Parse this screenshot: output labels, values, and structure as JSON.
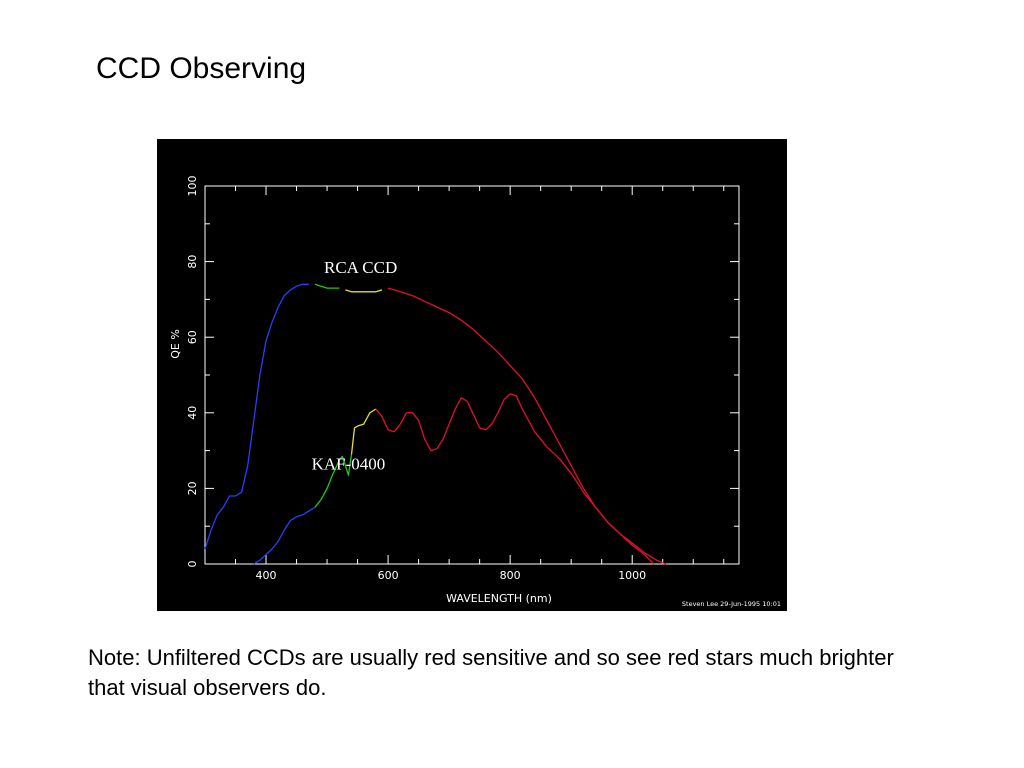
{
  "slide": {
    "title": "CCD Observing",
    "note": "Note:  Unfiltered CCDs are usually red sensitive and so see red stars much brighter that visual observers do."
  },
  "chart_data": {
    "type": "line",
    "xlabel": "WAVELENGTH (nm)",
    "ylabel": "QE %",
    "xlim": [
      300,
      1175
    ],
    "ylim": [
      0,
      100
    ],
    "x_ticks": [
      400,
      600,
      800,
      1000
    ],
    "y_ticks": [
      0,
      20,
      40,
      60,
      80,
      100
    ],
    "grid": false,
    "background": "#000000",
    "credit": "Steven Lee 29-Jun-1995 10:01",
    "annotations": [
      {
        "text": "RCA CCD",
        "x": 555,
        "y": 77
      },
      {
        "text": "KAF-0400",
        "x": 535,
        "y": 25
      }
    ],
    "series": [
      {
        "name": "RCA CCD",
        "points": [
          [
            300,
            4
          ],
          [
            310,
            9
          ],
          [
            320,
            13
          ],
          [
            330,
            15
          ],
          [
            340,
            18
          ],
          [
            350,
            18
          ],
          [
            360,
            19
          ],
          [
            370,
            26
          ],
          [
            380,
            38
          ],
          [
            390,
            50
          ],
          [
            400,
            59
          ],
          [
            410,
            64
          ],
          [
            420,
            68
          ],
          [
            430,
            71
          ],
          [
            440,
            72.5
          ],
          [
            450,
            73.5
          ],
          [
            460,
            74
          ],
          [
            470,
            74
          ],
          [
            480,
            74
          ],
          [
            490,
            73.5
          ],
          [
            500,
            73
          ],
          [
            510,
            73
          ],
          [
            520,
            73
          ],
          [
            530,
            72.5
          ],
          [
            540,
            72
          ],
          [
            550,
            72
          ],
          [
            560,
            72
          ],
          [
            570,
            72
          ],
          [
            580,
            72
          ],
          [
            590,
            72.5
          ],
          [
            600,
            73
          ],
          [
            610,
            72.5
          ],
          [
            620,
            72
          ],
          [
            640,
            71
          ],
          [
            660,
            69.5
          ],
          [
            680,
            68
          ],
          [
            700,
            66.5
          ],
          [
            720,
            64.5
          ],
          [
            740,
            62
          ],
          [
            760,
            59
          ],
          [
            780,
            56
          ],
          [
            800,
            52.5
          ],
          [
            820,
            49
          ],
          [
            840,
            44
          ],
          [
            860,
            38
          ],
          [
            880,
            32
          ],
          [
            900,
            26
          ],
          [
            920,
            20
          ],
          [
            940,
            15
          ],
          [
            960,
            11
          ],
          [
            980,
            8
          ],
          [
            1000,
            5.5
          ],
          [
            1020,
            3
          ],
          [
            1040,
            1
          ],
          [
            1055,
            0
          ]
        ],
        "color_segments": [
          {
            "from": 300,
            "to": 478,
            "color": "#2a3ff5"
          },
          {
            "from": 478,
            "to": 525,
            "color": "#22c51f"
          },
          {
            "from": 525,
            "to": 595,
            "color": "#e8e020"
          },
          {
            "from": 595,
            "to": 1055,
            "color": "#e0102a"
          }
        ]
      },
      {
        "name": "KAF-0400",
        "points": [
          [
            380,
            0
          ],
          [
            390,
            1
          ],
          [
            400,
            2.5
          ],
          [
            410,
            4
          ],
          [
            420,
            6
          ],
          [
            430,
            9
          ],
          [
            440,
            11.5
          ],
          [
            450,
            12.5
          ],
          [
            460,
            13
          ],
          [
            470,
            14
          ],
          [
            480,
            15
          ],
          [
            490,
            17
          ],
          [
            500,
            20
          ],
          [
            510,
            24
          ],
          [
            520,
            27.5
          ],
          [
            525,
            28.5
          ],
          [
            530,
            26
          ],
          [
            535,
            23.5
          ],
          [
            540,
            29
          ],
          [
            545,
            36
          ],
          [
            550,
            36.5
          ],
          [
            560,
            37
          ],
          [
            570,
            40
          ],
          [
            580,
            41
          ],
          [
            590,
            39
          ],
          [
            600,
            35.5
          ],
          [
            610,
            35
          ],
          [
            620,
            37
          ],
          [
            630,
            40
          ],
          [
            640,
            40
          ],
          [
            650,
            38
          ],
          [
            660,
            33
          ],
          [
            670,
            30
          ],
          [
            680,
            30.5
          ],
          [
            690,
            33
          ],
          [
            700,
            37
          ],
          [
            710,
            41
          ],
          [
            720,
            44
          ],
          [
            730,
            43
          ],
          [
            740,
            39.5
          ],
          [
            750,
            36
          ],
          [
            760,
            35.5
          ],
          [
            770,
            37
          ],
          [
            780,
            40
          ],
          [
            790,
            43.5
          ],
          [
            800,
            45
          ],
          [
            810,
            44.5
          ],
          [
            820,
            41
          ],
          [
            840,
            35
          ],
          [
            860,
            31
          ],
          [
            880,
            28
          ],
          [
            900,
            24
          ],
          [
            920,
            19
          ],
          [
            940,
            15
          ],
          [
            960,
            11
          ],
          [
            980,
            8
          ],
          [
            1000,
            5
          ],
          [
            1020,
            2.5
          ],
          [
            1035,
            0
          ]
        ],
        "color_segments": [
          {
            "from": 380,
            "to": 480,
            "color": "#2a3ff5"
          },
          {
            "from": 480,
            "to": 540,
            "color": "#22c51f"
          },
          {
            "from": 540,
            "to": 580,
            "color": "#e8e020"
          },
          {
            "from": 580,
            "to": 1035,
            "color": "#e0102a"
          }
        ]
      }
    ]
  }
}
